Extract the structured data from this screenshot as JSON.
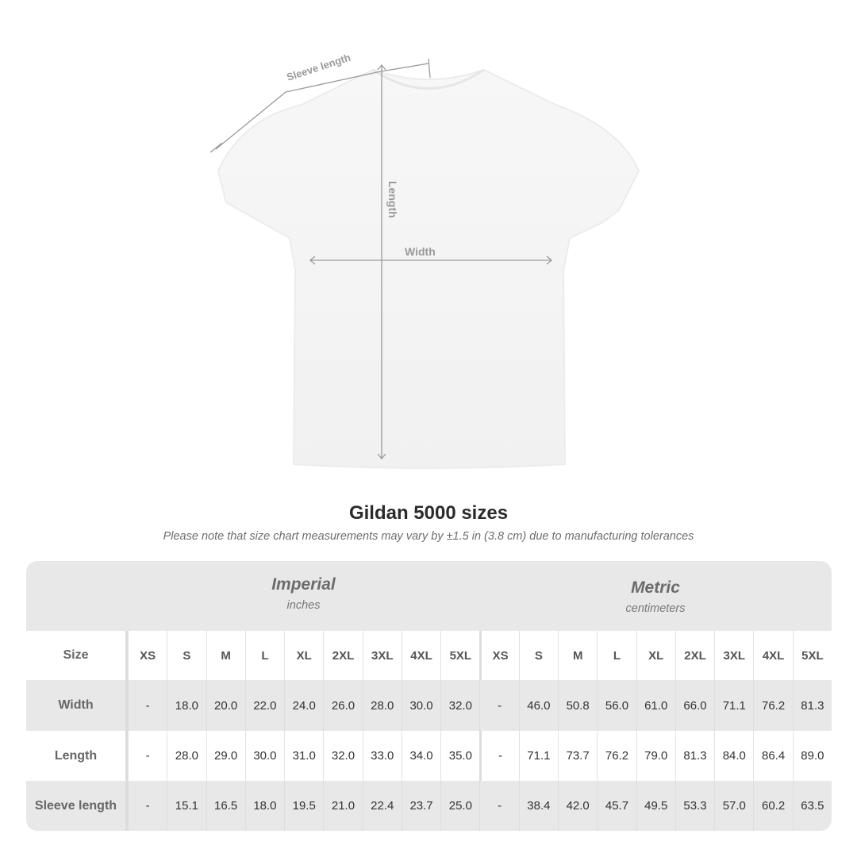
{
  "diagram": {
    "sleeve_label": "Sleeve length",
    "length_label": "Length",
    "width_label": "Width"
  },
  "title": "Gildan 5000 sizes",
  "note": "Please note that size chart measurements may vary by ±1.5 in (3.8 cm) due to manufacturing tolerances",
  "table": {
    "imperial": {
      "label": "Imperial",
      "unit": "inches"
    },
    "metric": {
      "label": "Metric",
      "unit": "centimeters"
    },
    "size_label": "Size",
    "sizes": [
      "XS",
      "S",
      "M",
      "L",
      "XL",
      "2XL",
      "3XL",
      "4XL",
      "5XL"
    ],
    "rows": [
      {
        "label": "Width",
        "imperial": [
          "-",
          "18.0",
          "20.0",
          "22.0",
          "24.0",
          "26.0",
          "28.0",
          "30.0",
          "32.0"
        ],
        "metric": [
          "-",
          "46.0",
          "50.8",
          "56.0",
          "61.0",
          "66.0",
          "71.1",
          "76.2",
          "81.3"
        ]
      },
      {
        "label": "Length",
        "imperial": [
          "-",
          "28.0",
          "29.0",
          "30.0",
          "31.0",
          "32.0",
          "33.0",
          "34.0",
          "35.0"
        ],
        "metric": [
          "-",
          "71.1",
          "73.7",
          "76.2",
          "79.0",
          "81.3",
          "84.0",
          "86.4",
          "89.0"
        ]
      },
      {
        "label": "Sleeve length",
        "imperial": [
          "-",
          "15.1",
          "16.5",
          "18.0",
          "19.5",
          "21.0",
          "22.4",
          "23.7",
          "25.0"
        ],
        "metric": [
          "-",
          "38.4",
          "42.0",
          "45.7",
          "49.5",
          "53.3",
          "57.0",
          "60.2",
          "63.5"
        ]
      }
    ]
  }
}
